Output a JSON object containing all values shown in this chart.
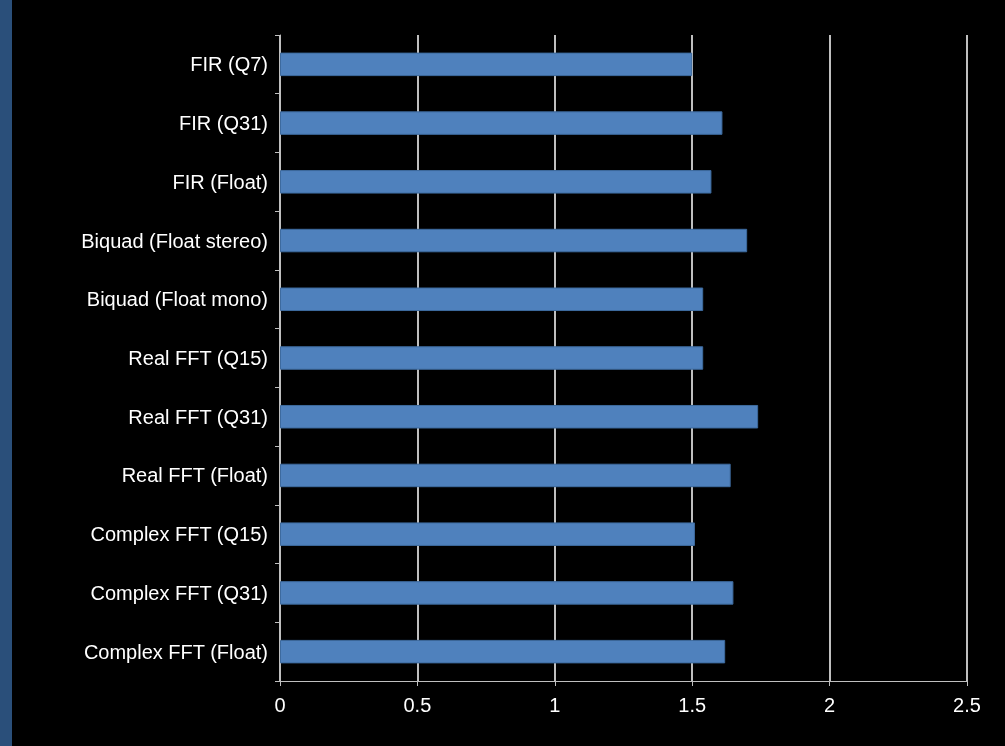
{
  "chart_data": {
    "type": "bar",
    "orientation": "horizontal",
    "categories": [
      "FIR (Q7)",
      "FIR (Q31)",
      "FIR (Float)",
      "Biquad (Float stereo)",
      "Biquad (Float mono)",
      "Real FFT (Q15)",
      "Real FFT (Q31)",
      "Real FFT (Float)",
      "Complex FFT (Q15)",
      "Complex FFT (Q31)",
      "Complex FFT (Float)"
    ],
    "values": [
      1.5,
      1.61,
      1.57,
      1.7,
      1.54,
      1.54,
      1.74,
      1.64,
      1.51,
      1.65,
      1.62
    ],
    "color": "#4f81bd",
    "xlim": [
      0,
      2.5
    ],
    "xticks": [
      0,
      0.5,
      1,
      1.5,
      2,
      2.5
    ],
    "grid": "x"
  }
}
